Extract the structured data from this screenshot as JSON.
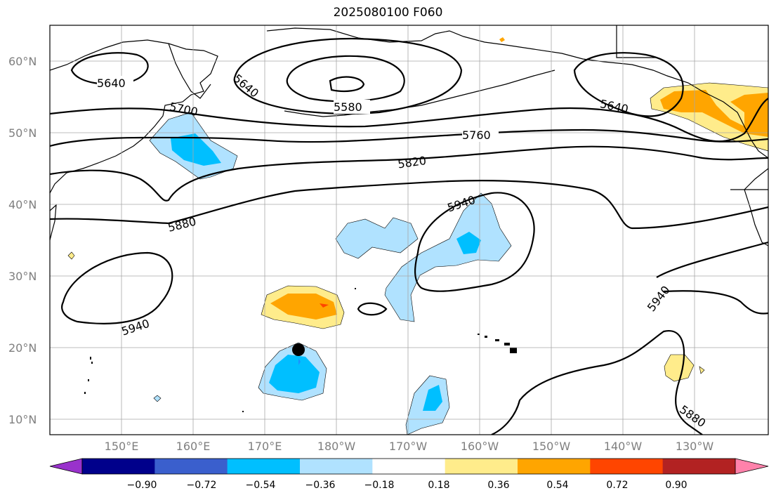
{
  "title": "2025080100 F060",
  "lat_labels": [
    "60°N",
    "50°N",
    "40°N",
    "30°N",
    "20°N",
    "10°N"
  ],
  "lon_labels": [
    "150°E",
    "160°E",
    "170°E",
    "180°W",
    "170°W",
    "160°W",
    "150°W",
    "140°W",
    "130°W"
  ],
  "contour_labels": [
    "5640",
    "5640",
    "5580",
    "5640",
    "5700",
    "5760",
    "5820",
    "5880",
    "5940",
    "5940",
    "5940",
    "5880"
  ],
  "colorbar": {
    "ticks": [
      "−0.90",
      "−0.72",
      "−0.54",
      "−0.36",
      "−0.18",
      "0.18",
      "0.36",
      "0.54",
      "0.72",
      "0.90"
    ],
    "colors": [
      "#9932cc",
      "#00008b",
      "#3a5fcd",
      "#00bfff",
      "#b0e2ff",
      "#ffffff",
      "#ffec8b",
      "#ffa500",
      "#ff4500",
      "#b22222",
      "#ff82ab"
    ]
  },
  "colors": {
    "gridline": "#a8a8a8",
    "contour": "#000000",
    "tick_label": "#7f7f7f"
  },
  "marker": {
    "name": "storm-center-marker",
    "lat": 20,
    "lon": "175°E"
  }
}
